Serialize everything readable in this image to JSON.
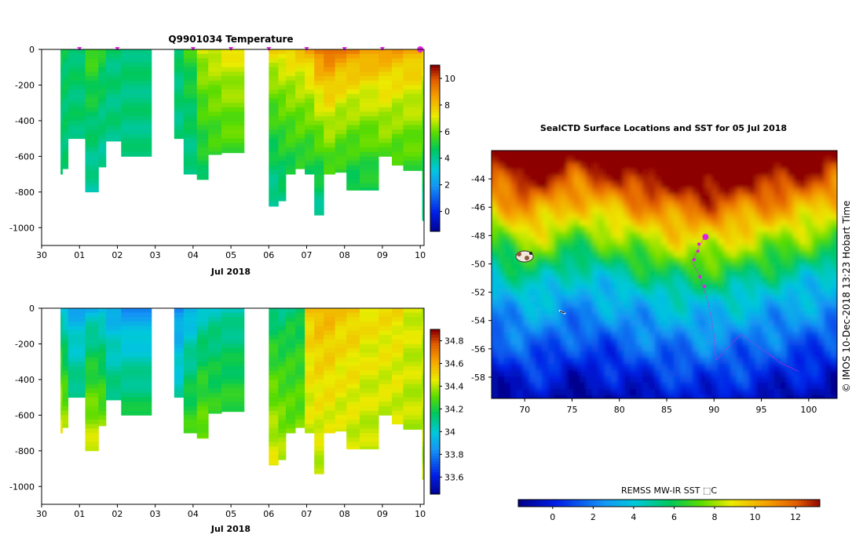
{
  "chart_data": [
    {
      "type": "heatmap",
      "title": "Q9901034  Temperature",
      "xlabel": "Jul 2018",
      "ylabel": "",
      "x_tick_labels": [
        "30",
        "01",
        "02",
        "03",
        "04",
        "05",
        "06",
        "07",
        "08",
        "09",
        "10"
      ],
      "x_tick_days": [
        0,
        1,
        2,
        3,
        4,
        5,
        6,
        7,
        8,
        9,
        10
      ],
      "xlim_days": [
        0,
        10.1
      ],
      "y_ticks": [
        0,
        -200,
        -400,
        -600,
        -800,
        -1000
      ],
      "ylim": [
        -1100,
        0
      ],
      "colorbar": {
        "ticks": [
          0,
          2,
          4,
          6,
          8,
          10
        ],
        "range": [
          -1.5,
          11
        ]
      },
      "profile_markers_days": [
        1,
        2,
        4,
        5,
        6,
        7,
        8,
        9,
        10
      ],
      "profiles": [
        {
          "x0": 0.5,
          "x1": 0.55,
          "depth": 700,
          "surf": 4.8,
          "deep": 4.2
        },
        {
          "x0": 0.55,
          "x1": 0.7,
          "depth": 670,
          "surf": 4.7,
          "deep": 4.4
        },
        {
          "x0": 0.7,
          "x1": 1.15,
          "depth": 500,
          "surf": 4.6,
          "deep": 4.4
        },
        {
          "x0": 1.15,
          "x1": 1.5,
          "depth": 800,
          "surf": 5.8,
          "deep": 3.6
        },
        {
          "x0": 1.5,
          "x1": 1.7,
          "depth": 660,
          "surf": 5.2,
          "deep": 3.6
        },
        {
          "x0": 1.7,
          "x1": 2.1,
          "depth": 515,
          "surf": 4.5,
          "deep": 4.2
        },
        {
          "x0": 2.1,
          "x1": 2.9,
          "depth": 600,
          "surf": 4.5,
          "deep": 4.2
        },
        {
          "x0": 3.5,
          "x1": 3.75,
          "depth": 500,
          "surf": 4.6,
          "deep": 4.1
        },
        {
          "x0": 3.75,
          "x1": 4.1,
          "depth": 700,
          "surf": 5.5,
          "deep": 3.8
        },
        {
          "x0": 4.1,
          "x1": 4.4,
          "depth": 730,
          "surf": 7.0,
          "deep": 4.2
        },
        {
          "x0": 4.4,
          "x1": 4.75,
          "depth": 590,
          "surf": 7.2,
          "deep": 4.6
        },
        {
          "x0": 4.75,
          "x1": 5.35,
          "depth": 580,
          "surf": 7.4,
          "deep": 4.8
        },
        {
          "x0": 6.0,
          "x1": 6.25,
          "depth": 880,
          "surf": 7.6,
          "deep": 3.5
        },
        {
          "x0": 6.25,
          "x1": 6.45,
          "depth": 850,
          "surf": 7.8,
          "deep": 3.8
        },
        {
          "x0": 6.45,
          "x1": 6.7,
          "depth": 700,
          "surf": 7.9,
          "deep": 4.0
        },
        {
          "x0": 6.7,
          "x1": 6.95,
          "depth": 670,
          "surf": 8.0,
          "deep": 4.2
        },
        {
          "x0": 6.95,
          "x1": 7.2,
          "depth": 700,
          "surf": 8.5,
          "deep": 3.8
        },
        {
          "x0": 7.2,
          "x1": 7.45,
          "depth": 930,
          "surf": 9.6,
          "deep": 3.6
        },
        {
          "x0": 7.45,
          "x1": 7.75,
          "depth": 700,
          "surf": 9.8,
          "deep": 4.2
        },
        {
          "x0": 7.75,
          "x1": 8.05,
          "depth": 690,
          "surf": 9.3,
          "deep": 4.0
        },
        {
          "x0": 8.05,
          "x1": 8.4,
          "depth": 790,
          "surf": 9.2,
          "deep": 3.8
        },
        {
          "x0": 8.4,
          "x1": 8.9,
          "depth": 790,
          "surf": 9.0,
          "deep": 4.0
        },
        {
          "x0": 8.9,
          "x1": 9.25,
          "depth": 600,
          "surf": 8.8,
          "deep": 4.6
        },
        {
          "x0": 9.25,
          "x1": 9.55,
          "depth": 650,
          "surf": 8.7,
          "deep": 4.4
        },
        {
          "x0": 9.55,
          "x1": 10.05,
          "depth": 680,
          "surf": 8.6,
          "deep": 4.5
        },
        {
          "x0": 10.05,
          "x1": 10.1,
          "depth": 960,
          "surf": 8.0,
          "deep": 3.8
        }
      ]
    },
    {
      "type": "heatmap",
      "title": "",
      "xlabel": "Jul 2018",
      "ylabel": "",
      "x_tick_labels": [
        "30",
        "01",
        "02",
        "03",
        "04",
        "05",
        "06",
        "07",
        "08",
        "09",
        "10"
      ],
      "x_tick_days": [
        0,
        1,
        2,
        3,
        4,
        5,
        6,
        7,
        8,
        9,
        10
      ],
      "xlim_days": [
        0,
        10.1
      ],
      "y_ticks": [
        0,
        -200,
        -400,
        -600,
        -800,
        -1000
      ],
      "ylim": [
        -1100,
        0
      ],
      "colorbar": {
        "ticks": [
          "33.6",
          "33.8",
          "34",
          "34.2",
          "34.4",
          "34.6",
          "34.8"
        ],
        "range": [
          33.45,
          34.9
        ]
      },
      "profile_markers_days": [],
      "profiles": [
        {
          "x0": 0.5,
          "x1": 0.55,
          "depth": 700,
          "surf": 34.0,
          "deep": 34.6
        },
        {
          "x0": 0.55,
          "x1": 0.7,
          "depth": 670,
          "surf": 33.95,
          "deep": 34.55
        },
        {
          "x0": 0.7,
          "x1": 1.15,
          "depth": 500,
          "surf": 33.9,
          "deep": 34.3
        },
        {
          "x0": 1.15,
          "x1": 1.5,
          "depth": 800,
          "surf": 33.95,
          "deep": 34.55
        },
        {
          "x0": 1.5,
          "x1": 1.7,
          "depth": 660,
          "surf": 33.95,
          "deep": 34.5
        },
        {
          "x0": 1.7,
          "x1": 2.1,
          "depth": 515,
          "surf": 33.9,
          "deep": 34.3
        },
        {
          "x0": 2.1,
          "x1": 2.9,
          "depth": 600,
          "surf": 33.85,
          "deep": 34.35
        },
        {
          "x0": 3.5,
          "x1": 3.75,
          "depth": 500,
          "surf": 33.85,
          "deep": 34.2
        },
        {
          "x0": 3.75,
          "x1": 4.1,
          "depth": 700,
          "surf": 33.9,
          "deep": 34.4
        },
        {
          "x0": 4.1,
          "x1": 4.4,
          "depth": 730,
          "surf": 34.0,
          "deep": 34.45
        },
        {
          "x0": 4.4,
          "x1": 4.75,
          "depth": 590,
          "surf": 34.05,
          "deep": 34.35
        },
        {
          "x0": 4.75,
          "x1": 5.35,
          "depth": 580,
          "surf": 34.05,
          "deep": 34.35
        },
        {
          "x0": 6.0,
          "x1": 6.25,
          "depth": 880,
          "surf": 34.1,
          "deep": 34.5
        },
        {
          "x0": 6.25,
          "x1": 6.45,
          "depth": 850,
          "surf": 34.1,
          "deep": 34.45
        },
        {
          "x0": 6.45,
          "x1": 6.7,
          "depth": 700,
          "surf": 34.15,
          "deep": 34.4
        },
        {
          "x0": 6.7,
          "x1": 6.95,
          "depth": 670,
          "surf": 34.15,
          "deep": 34.4
        },
        {
          "x0": 6.95,
          "x1": 7.2,
          "depth": 700,
          "surf": 34.55,
          "deep": 34.4
        },
        {
          "x0": 7.2,
          "x1": 7.45,
          "depth": 930,
          "surf": 34.6,
          "deep": 34.4
        },
        {
          "x0": 7.45,
          "x1": 7.75,
          "depth": 700,
          "surf": 34.6,
          "deep": 34.4
        },
        {
          "x0": 7.75,
          "x1": 8.05,
          "depth": 690,
          "surf": 34.55,
          "deep": 34.4
        },
        {
          "x0": 8.05,
          "x1": 8.4,
          "depth": 790,
          "surf": 34.55,
          "deep": 34.4
        },
        {
          "x0": 8.4,
          "x1": 8.9,
          "depth": 790,
          "surf": 34.5,
          "deep": 34.4
        },
        {
          "x0": 8.9,
          "x1": 9.25,
          "depth": 600,
          "surf": 34.5,
          "deep": 34.4
        },
        {
          "x0": 9.25,
          "x1": 9.55,
          "depth": 650,
          "surf": 34.5,
          "deep": 34.4
        },
        {
          "x0": 9.55,
          "x1": 10.05,
          "depth": 680,
          "surf": 34.45,
          "deep": 34.4
        },
        {
          "x0": 10.05,
          "x1": 10.1,
          "depth": 960,
          "surf": 34.4,
          "deep": 34.4
        }
      ]
    },
    {
      "type": "heatmap",
      "title": "SealCTD Surface Locations and SST for 05 Jul 2018",
      "xlabel": "",
      "ylabel": "",
      "x_ticks": [
        70,
        75,
        80,
        85,
        90,
        95,
        100
      ],
      "xlim": [
        66.5,
        103
      ],
      "y_ticks": [
        -44,
        -46,
        -48,
        -50,
        -52,
        -54,
        -56,
        -58
      ],
      "ylim": [
        -59.5,
        -42
      ],
      "colorbar": {
        "label": "REMSS MW-IR SST ⬚C",
        "ticks": [
          0,
          2,
          4,
          6,
          8,
          10,
          12
        ],
        "range": [
          -1.7,
          13.2
        ]
      },
      "sst_band_lat": {
        "lon": [
          66.5,
          70,
          75,
          80,
          85,
          90,
          95,
          100,
          103
        ],
        "lat_8C": [
          -47.0,
          -48.5,
          -47.0,
          -47.8,
          -48.8,
          -49.0,
          -48.2,
          -47.5,
          -46.8
        ]
      },
      "seal_track": [
        [
          89.0,
          -48.1
        ],
        [
          88.5,
          -48.7
        ],
        [
          88.0,
          -49.4
        ],
        [
          87.6,
          -49.8
        ],
        [
          88.5,
          -50.8
        ],
        [
          88.7,
          -51.4
        ],
        [
          89.3,
          -52.5
        ],
        [
          89.7,
          -53.8
        ],
        [
          90.0,
          -55.0
        ],
        [
          90.1,
          -56.1
        ],
        [
          90.2,
          -56.8
        ],
        [
          92.8,
          -55.0
        ],
        [
          95.5,
          -56.2
        ],
        [
          97.0,
          -57.0
        ],
        [
          99.0,
          -57.6
        ]
      ],
      "seal_surface_locations": [
        [
          89.1,
          -48.1
        ],
        [
          88.4,
          -48.6
        ],
        [
          88.3,
          -49.1
        ],
        [
          87.9,
          -49.7
        ],
        [
          88.5,
          -50.9
        ],
        [
          89.0,
          -51.6
        ]
      ],
      "current_location": [
        89.1,
        -48.1
      ]
    }
  ],
  "credit": "©  IMOS 10-Dec-2018 13:23 Hobart Time"
}
